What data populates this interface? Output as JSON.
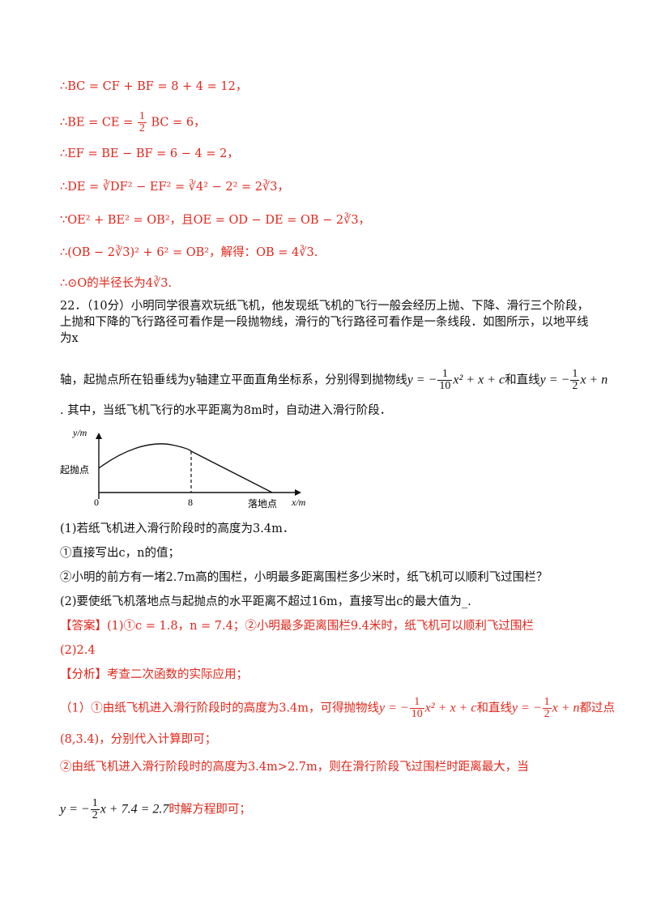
{
  "lines": {
    "l1": "∴BC = CF + BF = 8 + 4 = 12，",
    "l2_pre": "∴BE = CE = ",
    "l2_post": " BC = 6，",
    "l3": "∴EF = BE − BF = 6 − 4 = 2，",
    "l4": "∴DE = ∛DF² − EF² = ∛4² − 2² = 2∛3，",
    "l5a": "∵OE² + BE² = OB²，",
    "l5b": "且OE = OD − DE = OB − 2∛3，",
    "l6a": "∴(OB − 2∛3)² + 6² = OB²，",
    "l6b": "解得：",
    "l6c": "OB = 4∛3.",
    "l7": "∴⊙O的半径长为4∛3."
  },
  "problem": {
    "p1": "22．（10分）小明同学很喜欢玩纸飞机，他发现纸飞机的飞行一般会经历上抛、下降、滑行三个阶段，上抛和下降的飞行路径可看作是一段抛物线，滑行的飞行路径可看作是一条线段．如图所示，以地平线为x",
    "p2_pre": "轴，起抛点所在铅垂线为y轴建立平面直角坐标系，分别得到抛物线",
    "p2_para": "y = −",
    "p2_para_post": "x² + x + c",
    "p2_mid": "和直线",
    "p2_line": "y = −",
    "p2_line_post": "x + n",
    "p3": ". 其中，当纸飞机飞行的水平距离为8m时，自动进入滑行阶段．",
    "q1": "(1)若纸飞机进入滑行阶段时的高度为3.4m．",
    "q1a": "①直接写出c，n的值；",
    "q1b": "②小明的前方有一堵2.7m高的围栏，小明最多距离围栏多少米时，纸飞机可以顺利飞过围栏？",
    "q2": "(2)要使纸飞机落地点与起抛点的水平距离不超过16m，直接写出c的最大值为_."
  },
  "figure": {
    "y_label": "y/m",
    "x_label": "x/m",
    "origin": "0",
    "tick_8": "8",
    "start_label": "起抛点",
    "land_label": "落地点"
  },
  "answer": {
    "a1": "【答案】(1)①c = 1.8，n = 7.4；②小明最多距离围栏9.4米时，纸飞机可以顺利飞过围栏",
    "a2": "(2)2.4",
    "analysis": "【分析】考查二次函数的实际应用；",
    "s1_pre": "（1）①由纸飞机进入滑行阶段时的高度为3.4m，可得抛物线",
    "s1_para": "y = −",
    "s1_para_post": "x² + x + c",
    "s1_mid": "和直线",
    "s1_line": "y = −",
    "s1_line_post": "x + n",
    "s1_end": "都过点",
    "s2": "(8,3.4)，分别代入计算即可；",
    "s3": "②由纸飞机进入滑行阶段时的高度为3.4m>2.7m，则在滑行阶段飞过围栏时距离最大，当",
    "s4_pre": "y = −",
    "s4_post": "x + 7.4 = 2.7",
    "s4_end": "时解方程即可；"
  },
  "frac": {
    "half_num": "1",
    "half_den": "2",
    "tenth_num": "1",
    "tenth_den": "10"
  }
}
